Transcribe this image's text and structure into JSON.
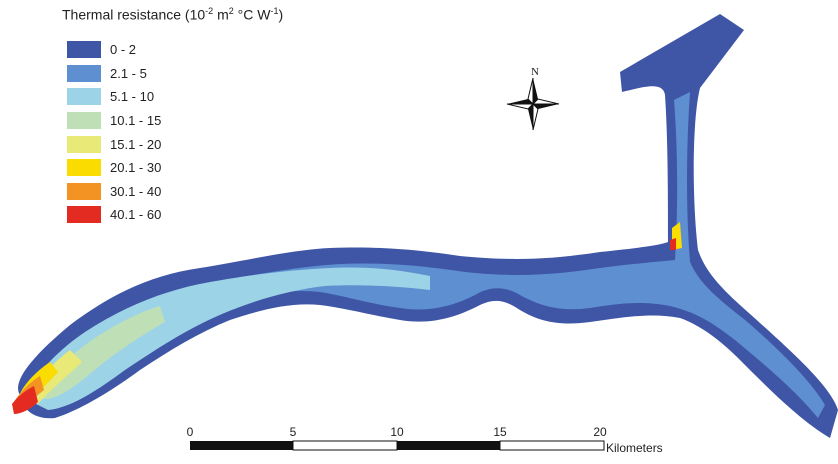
{
  "legend": {
    "title_text": "Thermal resistance (10",
    "title_exp1": "-2",
    "title_mid1": " m",
    "title_exp2": "2",
    "title_mid2": " °C W",
    "title_exp3": "-1",
    "title_end": ")",
    "items": [
      {
        "label": "0 - 2",
        "color": "#3f56a6"
      },
      {
        "label": "2.1 - 5",
        "color": "#5e8fd1"
      },
      {
        "label": "5.1 - 10",
        "color": "#9dd3e6"
      },
      {
        "label": "10.1 - 15",
        "color": "#bfe0b7"
      },
      {
        "label": "15.1 - 20",
        "color": "#e8e977"
      },
      {
        "label": "20.1 - 30",
        "color": "#fbdc00"
      },
      {
        "label": "30.1 - 40",
        "color": "#f39323"
      },
      {
        "label": "40.1 - 60",
        "color": "#e42b22"
      }
    ]
  },
  "north": {
    "label": "N"
  },
  "scale_bar": {
    "ticks": [
      "0",
      "5",
      "10",
      "15",
      "20"
    ],
    "unit": "Kilometers"
  }
}
